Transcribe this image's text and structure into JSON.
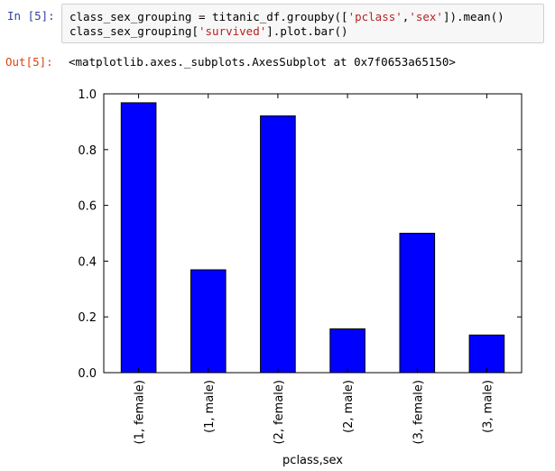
{
  "cell": {
    "in_prompt": "In [5]:",
    "out_prompt": "Out[5]:",
    "code": {
      "line1": {
        "a": "class_sex_grouping = titanic_df.groupby([",
        "s1": "'pclass'",
        "b": ",",
        "s2": "'sex'",
        "c": "]).mean()"
      },
      "line2": {
        "a": "class_sex_grouping[",
        "s1": "'survived'",
        "b": "].plot.bar()"
      }
    },
    "output": "<matplotlib.axes._subplots.AxesSubplot at 0x7f0653a65150>"
  },
  "chart_data": {
    "type": "bar",
    "categories": [
      "(1, female)",
      "(1, male)",
      "(2, female)",
      "(2, male)",
      "(3, female)",
      "(3, male)"
    ],
    "values": [
      0.968,
      0.369,
      0.921,
      0.157,
      0.5,
      0.135
    ],
    "ylim": [
      0.0,
      1.0
    ],
    "yticks": [
      "0.0",
      "0.2",
      "0.4",
      "0.6",
      "0.8",
      "1.0"
    ],
    "xlabel": "pclass,sex",
    "ylabel": "",
    "bar_color": "#0000ff",
    "grid": false,
    "legend": "none"
  }
}
